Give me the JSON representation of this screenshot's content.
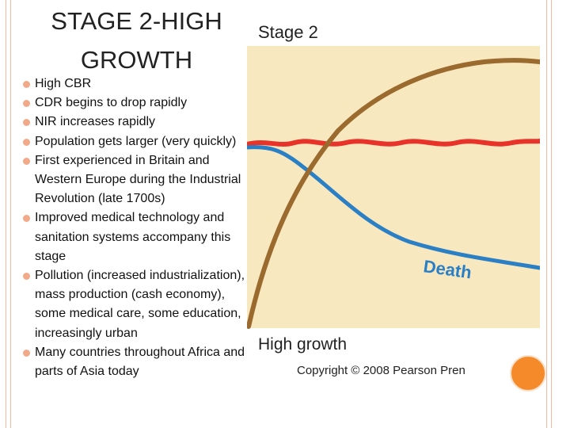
{
  "slide": {
    "title": "STAGE 2-HIGH GROWTH",
    "bullets": [
      "High CBR",
      "CDR begins to drop rapidly",
      "NIR increases rapidly",
      "Population gets larger (very quickly)",
      "First experienced in Britain and Western Europe during the Industrial Revolution (late 1700s)",
      "Improved medical technology and sanitation systems accompany this stage",
      "Pollution (increased industrialization), mass production (cash economy), some medical care, some education, increasingly urban",
      "Many countries throughout Africa and parts of Asia today"
    ]
  },
  "diagram": {
    "heading": "Stage 2",
    "death_label": "Death",
    "caption": "High growth",
    "copyright": "Copyright © 2008 Pearson Pren",
    "colors": {
      "background": "#f8e8c0",
      "birth_line": "#e8332a",
      "death_line": "#2b7fc4",
      "population_line": "#9a6a2e",
      "accent": "#f58a2a"
    }
  }
}
